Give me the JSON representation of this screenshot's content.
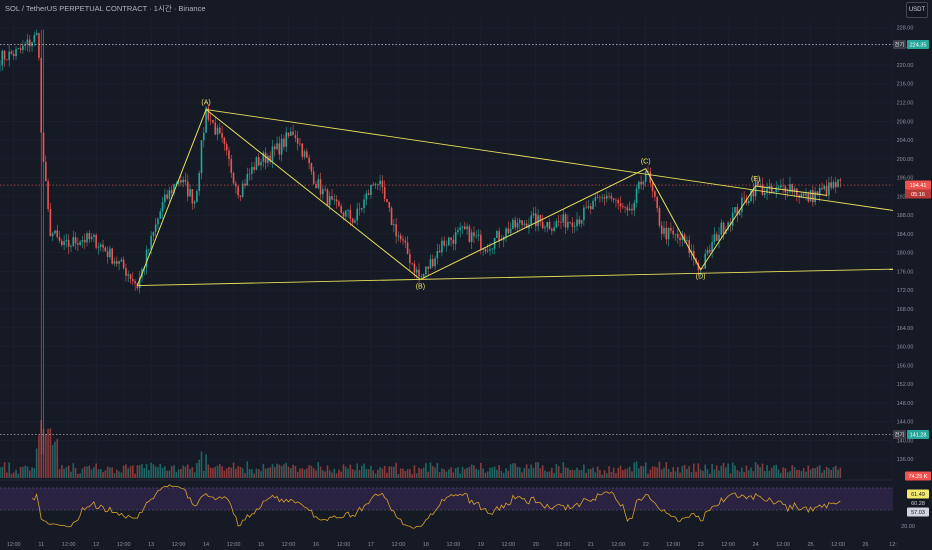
{
  "header": {
    "symbol_line": "SOL / TetherUS PERPETUAL CONTRACT · 1시간 · Binance"
  },
  "currency_button": "USDT",
  "price_axis": {
    "ticks": [
      "228.00",
      "224.00",
      "220.00",
      "216.00",
      "212.00",
      "208.00",
      "204.00",
      "200.00",
      "196.00",
      "192.00",
      "188.00",
      "184.00",
      "180.00",
      "176.00",
      "172.00",
      "168.00",
      "164.00",
      "160.00",
      "156.00",
      "152.00",
      "148.00",
      "144.00",
      "140.00",
      "136.00"
    ]
  },
  "time_axis": {
    "ticks": [
      "12:00",
      "11",
      "12:00",
      "12",
      "12:00",
      "13",
      "12:00",
      "14",
      "12:00",
      "15",
      "12:00",
      "16",
      "12:00",
      "17",
      "12:00",
      "18",
      "12:00",
      "19",
      "12:00",
      "20",
      "12:00",
      "21",
      "12:00",
      "22",
      "12:00",
      "23",
      "12:00",
      "24",
      "12:00",
      "25",
      "12:00",
      "26",
      "12:"
    ]
  },
  "rsi_axis": {
    "ticks": [
      "20.00"
    ]
  },
  "labels": {
    "top_level": {
      "short": "전기",
      "value": "224.35"
    },
    "current_price": {
      "value": "194.41",
      "countdown": "05:16"
    },
    "bottom_level": {
      "short": "전기",
      "value": "141.28"
    },
    "volume_tag": "74.25 K",
    "rsi_tags": [
      "61.49",
      "60.28",
      "57.03"
    ]
  },
  "wave_labels": [
    {
      "text": "(A)",
      "x": 14.0,
      "y": 210.5
    },
    {
      "text": "(B)",
      "x": 17.9,
      "y": 174.3
    },
    {
      "text": "(C)",
      "x": 22.0,
      "y": 197.9
    },
    {
      "text": "(D)",
      "x": 23.0,
      "y": 176.4
    },
    {
      "text": "(E)",
      "x": 24.0,
      "y": 194.2
    }
  ],
  "colors": {
    "bg": "#161a25",
    "grid": "#1f2330",
    "up": "#26a69a",
    "down": "#ef5350",
    "wave": "#e8df5c",
    "rsi": "#d9a32a",
    "rsi_band": "#3a2a5a"
  },
  "chart_data": {
    "type": "candlestick",
    "price_range": [
      132,
      230
    ],
    "x_range": [
      10.25,
      26.5
    ],
    "levels": {
      "top": 224.35,
      "current": 194.41,
      "bottom": 141.28
    },
    "wave_path": [
      [
        12.75,
        173.0
      ],
      [
        14.0,
        210.5
      ],
      [
        17.9,
        174.3
      ],
      [
        22.0,
        197.9
      ],
      [
        23.0,
        176.4
      ],
      [
        24.0,
        194.2
      ],
      [
        25.3,
        192.2
      ]
    ],
    "trendline_upper": [
      [
        14.0,
        210.5
      ],
      [
        26.5,
        189.0
      ]
    ],
    "trendline_lower": [
      [
        12.75,
        173.0
      ],
      [
        26.5,
        176.5
      ]
    ],
    "keypoints": [
      [
        10.25,
        221.5
      ],
      [
        10.6,
        222.8
      ],
      [
        10.95,
        226.5
      ],
      [
        11.0,
        205
      ],
      [
        11.15,
        185
      ],
      [
        11.4,
        181
      ],
      [
        11.7,
        183
      ],
      [
        12.0,
        182.5
      ],
      [
        12.6,
        175.5
      ],
      [
        12.75,
        173.0
      ],
      [
        13.2,
        190
      ],
      [
        13.5,
        196
      ],
      [
        13.8,
        191
      ],
      [
        14.0,
        210.5
      ],
      [
        14.3,
        203
      ],
      [
        14.6,
        193
      ],
      [
        14.9,
        199
      ],
      [
        15.3,
        202
      ],
      [
        15.6,
        206
      ],
      [
        16.0,
        195
      ],
      [
        16.3,
        190
      ],
      [
        16.7,
        187
      ],
      [
        17.1,
        196
      ],
      [
        17.4,
        186
      ],
      [
        17.9,
        174.3
      ],
      [
        18.3,
        182
      ],
      [
        18.7,
        184.5
      ],
      [
        19.1,
        181.5
      ],
      [
        19.5,
        185
      ],
      [
        19.9,
        187
      ],
      [
        20.3,
        186
      ],
      [
        20.8,
        187.5
      ],
      [
        21.3,
        192.5
      ],
      [
        21.7,
        187.5
      ],
      [
        22.0,
        197.9
      ],
      [
        22.3,
        184.5
      ],
      [
        22.7,
        182.5
      ],
      [
        23.0,
        176.4
      ],
      [
        23.3,
        184
      ],
      [
        23.7,
        189.5
      ],
      [
        24.0,
        194.2
      ],
      [
        24.3,
        192.5
      ],
      [
        24.6,
        194.5
      ],
      [
        24.9,
        191.5
      ],
      [
        25.2,
        193
      ],
      [
        25.5,
        194.41
      ]
    ]
  }
}
